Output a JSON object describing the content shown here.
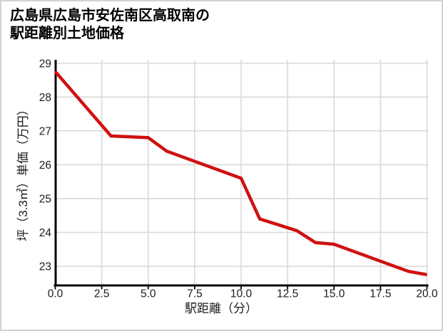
{
  "title": {
    "line1": "広島県広島市安佐南区高取南の",
    "line2": "駅距離別土地価格"
  },
  "chart_data": {
    "type": "line",
    "title": "広島県広島市安佐南区高取南の駅距離別土地価格",
    "xlabel": "駅距離（分）",
    "ylabel": "坪（3.3㎡）単価（万円）",
    "x": [
      0,
      3,
      5,
      6,
      10,
      11,
      13,
      14,
      15,
      19,
      20
    ],
    "y": [
      28.75,
      26.85,
      26.8,
      26.4,
      25.6,
      24.4,
      24.05,
      23.7,
      23.65,
      22.85,
      22.75
    ],
    "xlim": [
      0,
      20
    ],
    "ylim": [
      22.45,
      29.1
    ],
    "x_ticks": [
      0.0,
      2.5,
      5.0,
      7.5,
      10.0,
      12.5,
      15.0,
      17.5,
      20.0
    ],
    "x_tick_labels": [
      "0.0",
      "2.5",
      "5.0",
      "7.5",
      "10.0",
      "12.5",
      "15.0",
      "17.5",
      "20.0"
    ],
    "y_ticks": [
      23,
      24,
      25,
      26,
      27,
      28,
      29
    ],
    "y_tick_labels": [
      "23",
      "24",
      "25",
      "26",
      "27",
      "28",
      "29"
    ],
    "grid": true,
    "grid_color": "#d9d9d9",
    "line_color": "#cf1111",
    "axis_color": "#000000",
    "text_color": "#1c1c1c"
  }
}
